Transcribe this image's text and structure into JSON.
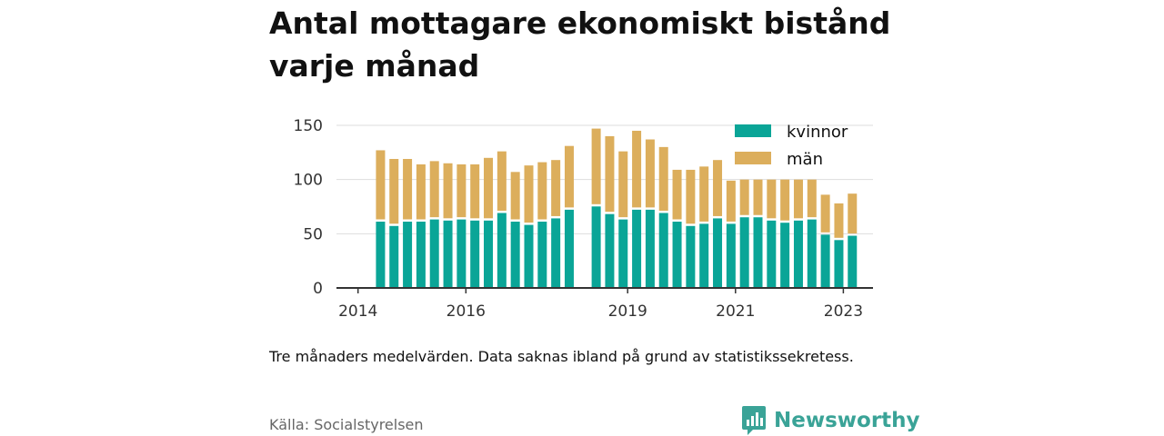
{
  "title": "Antal mottagare ekonomiskt bistånd varje månad",
  "note": "Tre månaders medelvärden. Data saknas ibland på grund av statistikssekretess.",
  "source": "Källa: Socialstyrelsen",
  "brand": {
    "name": "Newsworthy",
    "color": "#3aa397",
    "icon": "newsworthy-logo-icon"
  },
  "chart_data": {
    "type": "bar",
    "stacked": true,
    "title": "Antal mottagare ekonomiskt bistånd varje månad",
    "xlabel": "",
    "ylabel": "",
    "ylim": [
      0,
      150
    ],
    "yticks": [
      0,
      50,
      100,
      150
    ],
    "xticks": [
      "2014",
      "2016",
      "2019",
      "2021",
      "2023"
    ],
    "grid": true,
    "legend_position": "top-right",
    "x": [
      "2014-06",
      "2014-09",
      "2014-12",
      "2015-03",
      "2015-06",
      "2015-09",
      "2015-12",
      "2016-03",
      "2016-06",
      "2016-09",
      "2016-12",
      "2017-03",
      "2017-06",
      "2017-09",
      "2017-12",
      "2018-06",
      "2018-09",
      "2018-12",
      "2019-03",
      "2019-06",
      "2019-09",
      "2019-12",
      "2020-03",
      "2020-06",
      "2020-09",
      "2020-12",
      "2021-03",
      "2021-06",
      "2021-09",
      "2021-12",
      "2022-03",
      "2022-06",
      "2022-09",
      "2022-12",
      "2023-03"
    ],
    "series": [
      {
        "name": "kvinnor",
        "color": "#0aa597",
        "values": [
          62,
          58,
          62,
          62,
          64,
          63,
          64,
          63,
          63,
          70,
          62,
          59,
          62,
          65,
          73,
          76,
          69,
          64,
          73,
          73,
          70,
          62,
          58,
          60,
          65,
          60,
          66,
          66,
          63,
          61,
          63,
          64,
          50,
          45,
          49
        ]
      },
      {
        "name": "män",
        "color": "#dcae5c",
        "values": [
          65,
          61,
          57,
          52,
          53,
          52,
          50,
          51,
          57,
          56,
          45,
          54,
          54,
          53,
          58,
          71,
          71,
          62,
          72,
          64,
          60,
          47,
          51,
          52,
          53,
          39,
          34,
          34,
          37,
          39,
          37,
          36,
          36,
          33,
          38
        ]
      }
    ],
    "note": "Tre månaders medelvärden. Data saknas ibland på grund av statistikssekretess."
  }
}
